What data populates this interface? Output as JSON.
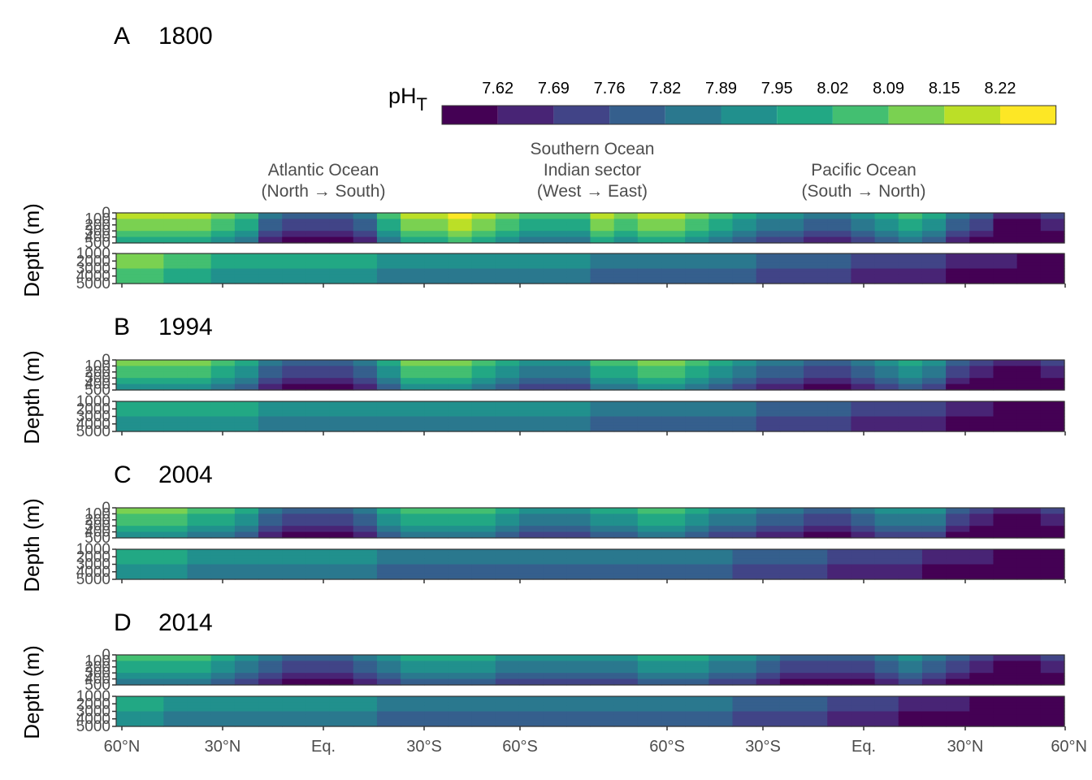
{
  "chart_data": {
    "type": "heatmap",
    "variable": "pH",
    "variable_subscript": "T",
    "legend": {
      "breaks": [
        "7.62",
        "7.69",
        "7.76",
        "7.82",
        "7.89",
        "7.95",
        "8.02",
        "8.09",
        "8.15",
        "8.22"
      ],
      "colors": [
        "#440154",
        "#482475",
        "#414487",
        "#355F8D",
        "#2A788E",
        "#21908D",
        "#22A884",
        "#43BF71",
        "#7AD151",
        "#BBDF27",
        "#FDE725"
      ],
      "placement": "top-right"
    },
    "ylabel": "Depth (m)",
    "upper_panel_yticks": [
      "0",
      "100",
      "200",
      "300",
      "400",
      "500"
    ],
    "lower_panel_yticks": [
      "1000",
      "2000",
      "3000",
      "4000",
      "5000"
    ],
    "basins": [
      {
        "line1": "Atlantic Ocean",
        "line2": "(North → South)"
      },
      {
        "line1": "Southern Ocean",
        "line2": "Indian sector",
        "line3": "(West → East)"
      },
      {
        "line1": "Pacific Ocean",
        "line2": "(South → North)"
      }
    ],
    "xticks": [
      "60°N",
      "30°N",
      "Eq.",
      "30°S",
      "60°S",
      "60°S",
      "30°S",
      "Eq.",
      "30°N",
      "60°N"
    ],
    "panels": [
      {
        "letter": "A",
        "year": "1800",
        "surface_profile": [
          9,
          9,
          9,
          9,
          8,
          7,
          4,
          3,
          3,
          3,
          4,
          7,
          9,
          9,
          10,
          9,
          8,
          7,
          7,
          7,
          9,
          8,
          9,
          9,
          8,
          7,
          6,
          5,
          5,
          4,
          4,
          5,
          6,
          7,
          6,
          4,
          3,
          1,
          1,
          2
        ],
        "deep_profile": [
          8,
          8,
          7,
          7,
          6,
          6,
          6,
          6,
          6,
          6,
          6,
          5,
          5,
          5,
          5,
          5,
          5,
          5,
          5,
          5,
          4,
          4,
          4,
          4,
          4,
          4,
          4,
          3,
          3,
          3,
          3,
          2,
          2,
          2,
          2,
          1,
          1,
          1,
          0,
          0
        ]
      },
      {
        "letter": "B",
        "year": "1994",
        "surface_profile": [
          8,
          8,
          8,
          8,
          7,
          6,
          4,
          3,
          3,
          3,
          4,
          6,
          8,
          8,
          8,
          7,
          6,
          5,
          5,
          5,
          7,
          7,
          8,
          8,
          7,
          6,
          5,
          4,
          4,
          3,
          3,
          4,
          5,
          6,
          5,
          3,
          2,
          1,
          1,
          2
        ],
        "deep_profile": [
          6,
          6,
          6,
          6,
          6,
          6,
          5,
          5,
          5,
          5,
          5,
          5,
          5,
          5,
          5,
          5,
          5,
          5,
          5,
          5,
          4,
          4,
          4,
          4,
          4,
          4,
          4,
          3,
          3,
          3,
          3,
          2,
          2,
          2,
          2,
          1,
          1,
          0,
          0,
          0
        ]
      },
      {
        "letter": "C",
        "year": "2004",
        "surface_profile": [
          8,
          8,
          8,
          7,
          7,
          6,
          4,
          3,
          3,
          3,
          4,
          6,
          7,
          7,
          7,
          7,
          6,
          5,
          5,
          5,
          6,
          6,
          7,
          7,
          6,
          5,
          5,
          4,
          4,
          3,
          3,
          4,
          5,
          5,
          5,
          3,
          2,
          1,
          1,
          2
        ],
        "deep_profile": [
          6,
          6,
          6,
          5,
          5,
          5,
          5,
          5,
          5,
          5,
          5,
          4,
          4,
          4,
          4,
          4,
          4,
          4,
          4,
          4,
          4,
          4,
          4,
          4,
          4,
          4,
          3,
          3,
          3,
          3,
          2,
          2,
          2,
          2,
          1,
          1,
          1,
          0,
          0,
          0
        ]
      },
      {
        "letter": "D",
        "year": "2014",
        "surface_profile": [
          7,
          7,
          7,
          7,
          6,
          5,
          4,
          3,
          3,
          3,
          4,
          5,
          6,
          6,
          6,
          6,
          5,
          5,
          5,
          5,
          5,
          5,
          6,
          6,
          6,
          5,
          5,
          4,
          3,
          3,
          3,
          3,
          4,
          5,
          4,
          3,
          2,
          1,
          1,
          2
        ],
        "deep_profile": [
          6,
          6,
          5,
          5,
          5,
          5,
          5,
          5,
          5,
          5,
          5,
          4,
          4,
          4,
          4,
          4,
          4,
          4,
          4,
          4,
          4,
          4,
          4,
          4,
          4,
          4,
          3,
          3,
          3,
          3,
          2,
          2,
          2,
          1,
          1,
          1,
          0,
          0,
          0,
          0
        ]
      }
    ]
  }
}
